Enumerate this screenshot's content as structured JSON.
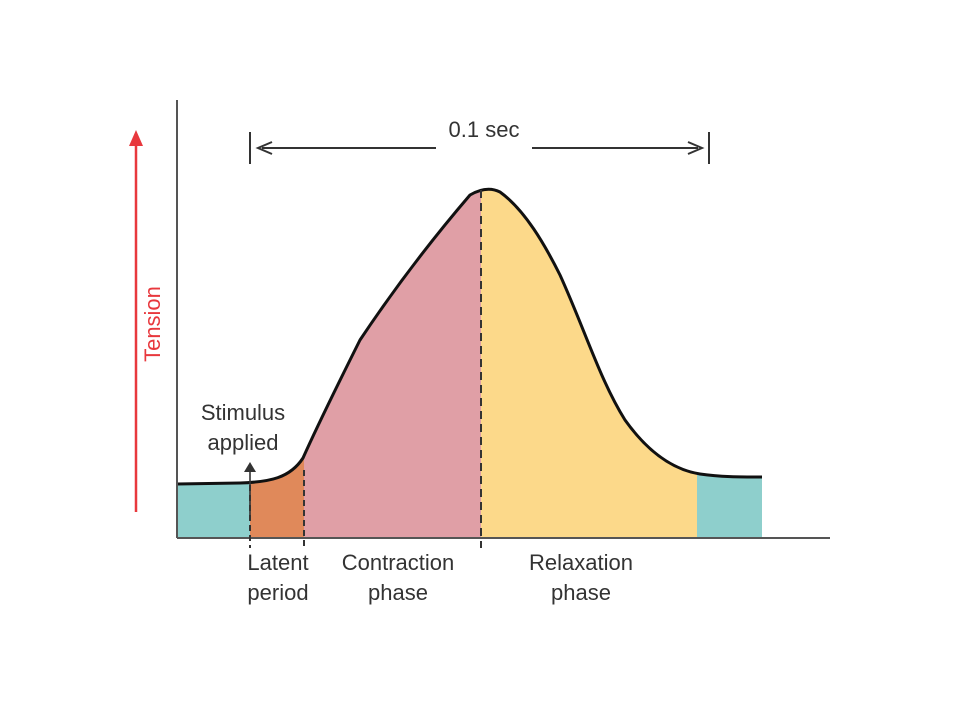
{
  "diagram": {
    "title": "",
    "duration_label": "0.1 sec",
    "y_axis_label": "Tension",
    "stimulus_label": [
      "Stimulus",
      "applied"
    ],
    "phases": [
      {
        "name": [
          "Latent",
          "period"
        ],
        "color": "#e0895a"
      },
      {
        "name": [
          "Contraction",
          "phase"
        ],
        "color": "#e09fa6"
      },
      {
        "name": [
          "Relaxation",
          "phase"
        ],
        "color": "#fcd98a"
      }
    ],
    "baseline_color": "#8ecfcc"
  },
  "colors": {
    "axis": "#555555",
    "curve": "#111111",
    "tension_arrow": "#e8383d",
    "text": "#333333"
  }
}
